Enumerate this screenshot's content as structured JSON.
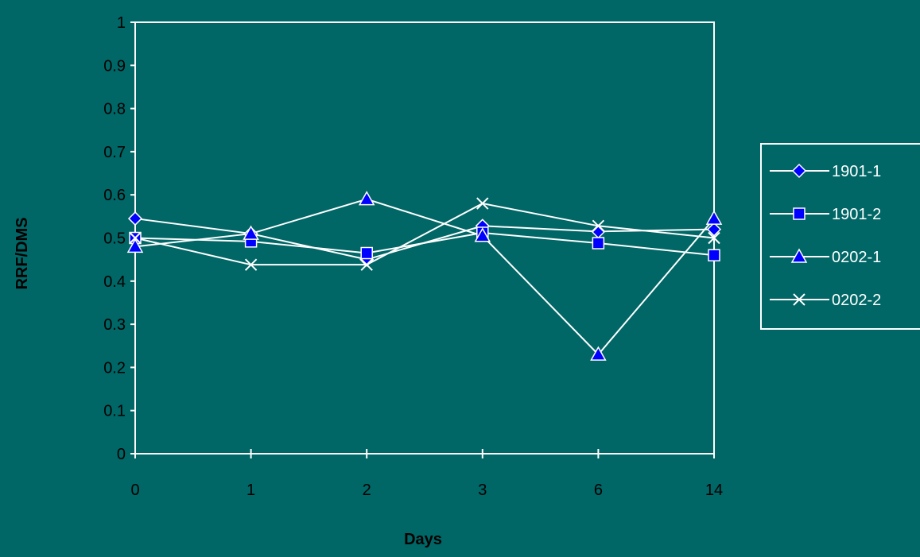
{
  "chart_data": {
    "type": "line",
    "title": "",
    "xlabel": "Days",
    "ylabel": "RRF/DMS",
    "categories": [
      "0",
      "1",
      "2",
      "3",
      "6",
      "14"
    ],
    "ylim": [
      0,
      1
    ],
    "yticks": [
      "0",
      "0.1",
      "0.2",
      "0.3",
      "0.4",
      "0.5",
      "0.6",
      "0.7",
      "0.8",
      "0.9",
      "1"
    ],
    "grid": false,
    "legend_position": "right",
    "series": [
      {
        "name": "1901-1",
        "marker": "diamond",
        "values": [
          0.545,
          0.51,
          0.45,
          0.528,
          0.515,
          0.52
        ]
      },
      {
        "name": "1901-2",
        "marker": "square",
        "values": [
          0.5,
          0.492,
          0.465,
          0.512,
          0.488,
          0.46
        ]
      },
      {
        "name": "0202-1",
        "marker": "triangle",
        "values": [
          0.48,
          0.51,
          0.59,
          0.505,
          0.23,
          0.545
        ]
      },
      {
        "name": "0202-2",
        "marker": "x",
        "values": [
          0.5,
          0.438,
          0.438,
          0.58,
          0.528,
          0.5
        ]
      }
    ],
    "colors": {
      "background": "#006666",
      "line": "#ffffff",
      "marker_fill": "#0000ff",
      "marker_stroke": "#ffffff",
      "text": "#000000"
    }
  }
}
